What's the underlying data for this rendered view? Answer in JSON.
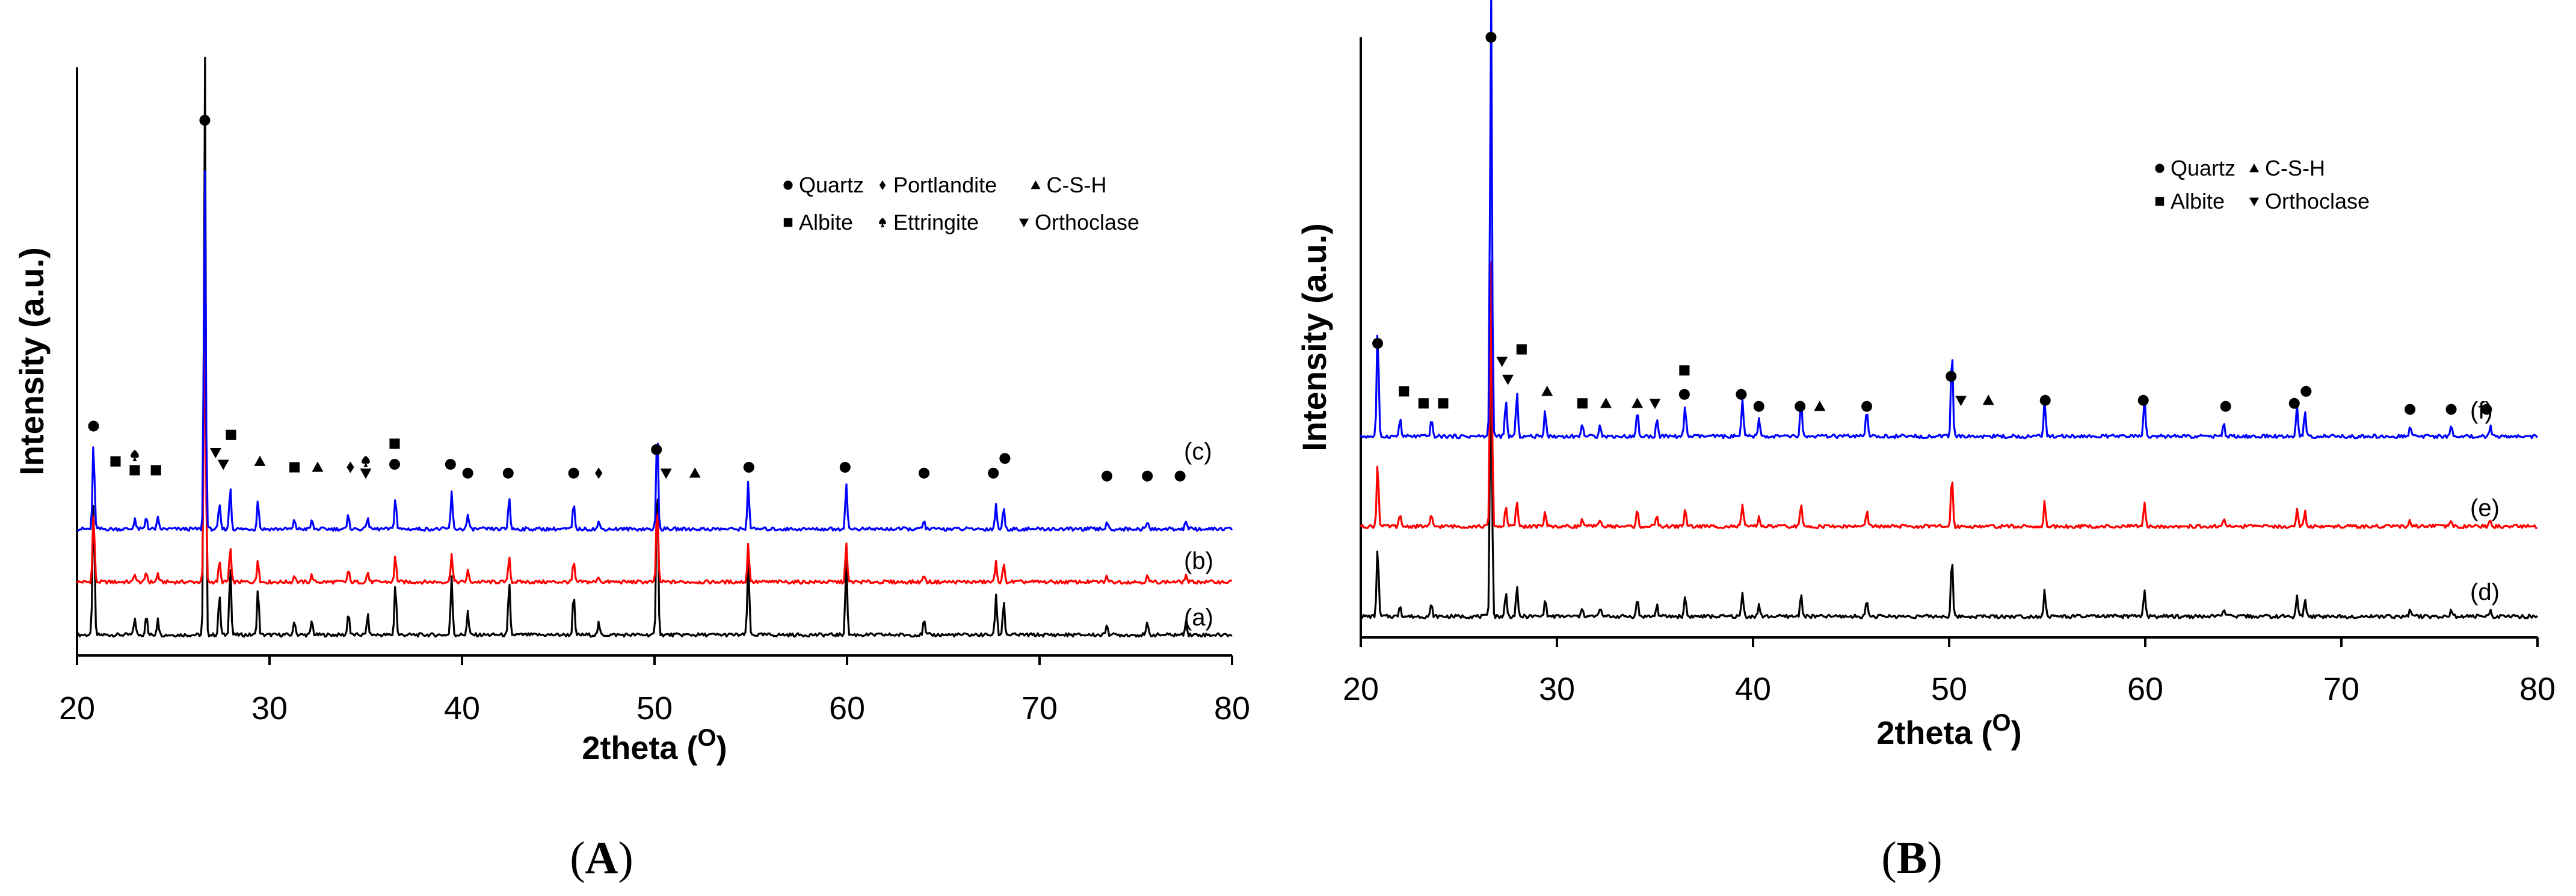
{
  "chart_data": [
    {
      "panel": "A",
      "panel_label": "A",
      "type": "line",
      "title": "",
      "xlabel": "2theta (O)",
      "xlabel_main": "2theta (",
      "xlabel_sup": "O",
      "xlabel_close": ")",
      "ylabel": "Intensity (a.u.)",
      "xlim": [
        20,
        80
      ],
      "xticks": [
        20,
        30,
        40,
        50,
        60,
        70,
        80
      ],
      "grid": false,
      "legend_position": "top-right",
      "legend_rows": [
        [
          {
            "marker": "circle",
            "label": "Quartz"
          },
          {
            "marker": "diamond",
            "label": "Portlandite"
          },
          {
            "marker": "triangle-up",
            "label": "C-S-H"
          }
        ],
        [
          {
            "marker": "square",
            "label": "Albite"
          },
          {
            "marker": "spade",
            "label": "Ettringite"
          },
          {
            "marker": "triangle-down",
            "label": "Orthoclase"
          }
        ]
      ],
      "peaks": [
        [
          20.86,
          0.24
        ],
        [
          23.0,
          0.03
        ],
        [
          23.6,
          0.035
        ],
        [
          24.2,
          0.03
        ],
        [
          26.64,
          1.0
        ],
        [
          27.4,
          0.07
        ],
        [
          27.96,
          0.12
        ],
        [
          29.4,
          0.08
        ],
        [
          31.3,
          0.025
        ],
        [
          32.2,
          0.025
        ],
        [
          34.1,
          0.04
        ],
        [
          35.1,
          0.035
        ],
        [
          36.54,
          0.09
        ],
        [
          39.46,
          0.1
        ],
        [
          40.3,
          0.04
        ],
        [
          42.45,
          0.09
        ],
        [
          45.8,
          0.07
        ],
        [
          47.1,
          0.02
        ],
        [
          50.14,
          0.28
        ],
        [
          54.87,
          0.13
        ],
        [
          59.96,
          0.13
        ],
        [
          64.0,
          0.025
        ],
        [
          67.74,
          0.07
        ],
        [
          68.14,
          0.06
        ],
        [
          73.5,
          0.02
        ],
        [
          75.6,
          0.02
        ],
        [
          77.6,
          0.025
        ]
      ],
      "series": [
        {
          "name": "(a)",
          "color": "#000000",
          "offset": 0.0,
          "scale": 1.0
        },
        {
          "name": "(b)",
          "color": "#ff0000",
          "offset": 0.09,
          "scale": 0.5
        },
        {
          "name": "(c)",
          "color": "#0000ff",
          "offset": 0.18,
          "scale": 0.62
        }
      ],
      "phase_markers": [
        {
          "x": 20.86,
          "y": 0.39,
          "marker": "circle"
        },
        {
          "x": 22.0,
          "y": 0.33,
          "marker": "square"
        },
        {
          "x": 23.0,
          "y": 0.34,
          "marker": "spade"
        },
        {
          "x": 23.0,
          "y": 0.315,
          "marker": "square"
        },
        {
          "x": 24.1,
          "y": 0.315,
          "marker": "square"
        },
        {
          "x": 26.64,
          "y": 0.91,
          "marker": "circle"
        },
        {
          "x": 27.2,
          "y": 0.345,
          "marker": "triangle-down"
        },
        {
          "x": 27.6,
          "y": 0.325,
          "marker": "triangle-down"
        },
        {
          "x": 28.0,
          "y": 0.375,
          "marker": "square"
        },
        {
          "x": 29.5,
          "y": 0.33,
          "marker": "triangle-up"
        },
        {
          "x": 31.3,
          "y": 0.32,
          "marker": "square"
        },
        {
          "x": 32.5,
          "y": 0.32,
          "marker": "triangle-up"
        },
        {
          "x": 34.2,
          "y": 0.32,
          "marker": "diamond"
        },
        {
          "x": 35.0,
          "y": 0.33,
          "marker": "spade"
        },
        {
          "x": 35.0,
          "y": 0.31,
          "marker": "triangle-down"
        },
        {
          "x": 36.5,
          "y": 0.36,
          "marker": "square"
        },
        {
          "x": 36.5,
          "y": 0.325,
          "marker": "circle"
        },
        {
          "x": 39.4,
          "y": 0.325,
          "marker": "circle"
        },
        {
          "x": 40.3,
          "y": 0.31,
          "marker": "circle"
        },
        {
          "x": 42.4,
          "y": 0.31,
          "marker": "circle"
        },
        {
          "x": 45.8,
          "y": 0.31,
          "marker": "circle"
        },
        {
          "x": 47.1,
          "y": 0.31,
          "marker": "diamond"
        },
        {
          "x": 50.1,
          "y": 0.35,
          "marker": "circle"
        },
        {
          "x": 50.6,
          "y": 0.31,
          "marker": "triangle-down"
        },
        {
          "x": 52.1,
          "y": 0.31,
          "marker": "triangle-up"
        },
        {
          "x": 54.9,
          "y": 0.32,
          "marker": "circle"
        },
        {
          "x": 59.9,
          "y": 0.32,
          "marker": "circle"
        },
        {
          "x": 64.0,
          "y": 0.31,
          "marker": "circle"
        },
        {
          "x": 67.6,
          "y": 0.31,
          "marker": "circle"
        },
        {
          "x": 68.2,
          "y": 0.335,
          "marker": "circle"
        },
        {
          "x": 73.5,
          "y": 0.305,
          "marker": "circle"
        },
        {
          "x": 75.6,
          "y": 0.305,
          "marker": "circle"
        },
        {
          "x": 77.3,
          "y": 0.305,
          "marker": "circle"
        }
      ]
    },
    {
      "panel": "B",
      "panel_label": "B",
      "type": "line",
      "title": "",
      "xlabel": "2theta (O)",
      "xlabel_main": "2theta (",
      "xlabel_sup": "O",
      "xlabel_close": ")",
      "ylabel": "Intensity (a.u.)",
      "xlim": [
        20,
        80
      ],
      "xticks": [
        20,
        30,
        40,
        50,
        60,
        70,
        80
      ],
      "grid": false,
      "legend_position": "top-right",
      "legend_rows": [
        [
          {
            "marker": "circle",
            "label": "Quartz"
          },
          {
            "marker": "triangle-up",
            "label": "C-S-H"
          }
        ],
        [
          {
            "marker": "square",
            "label": "Albite"
          },
          {
            "marker": "triangle-down",
            "label": "Orthoclase"
          }
        ]
      ],
      "peaks": [
        [
          20.86,
          0.12
        ],
        [
          22.0,
          0.02
        ],
        [
          23.6,
          0.02
        ],
        [
          26.64,
          0.5
        ],
        [
          27.4,
          0.04
        ],
        [
          27.96,
          0.05
        ],
        [
          29.4,
          0.03
        ],
        [
          31.3,
          0.015
        ],
        [
          32.2,
          0.015
        ],
        [
          34.1,
          0.03
        ],
        [
          35.1,
          0.02
        ],
        [
          36.54,
          0.035
        ],
        [
          39.46,
          0.04
        ],
        [
          40.3,
          0.02
        ],
        [
          42.45,
          0.04
        ],
        [
          45.8,
          0.03
        ],
        [
          50.14,
          0.1
        ],
        [
          54.87,
          0.045
        ],
        [
          59.96,
          0.045
        ],
        [
          64.0,
          0.015
        ],
        [
          67.74,
          0.035
        ],
        [
          68.14,
          0.03
        ],
        [
          73.5,
          0.012
        ],
        [
          75.6,
          0.012
        ],
        [
          77.6,
          0.012
        ]
      ],
      "series": [
        {
          "name": "(d)",
          "color": "#000000",
          "offset": 0.0,
          "scale": 1.0
        },
        {
          "name": "(e)",
          "color": "#ff0000",
          "offset": 0.15,
          "scale": 0.9
        },
        {
          "name": "(f)",
          "color": "#0000ff",
          "offset": 0.3,
          "scale": 1.5
        }
      ],
      "phase_markers": [
        {
          "x": 20.86,
          "y": 0.49,
          "marker": "circle"
        },
        {
          "x": 22.2,
          "y": 0.41,
          "marker": "square"
        },
        {
          "x": 23.2,
          "y": 0.39,
          "marker": "square"
        },
        {
          "x": 24.2,
          "y": 0.39,
          "marker": "square"
        },
        {
          "x": 26.64,
          "y": 1.0,
          "marker": "circle"
        },
        {
          "x": 27.2,
          "y": 0.46,
          "marker": "triangle-down"
        },
        {
          "x": 27.5,
          "y": 0.43,
          "marker": "triangle-down"
        },
        {
          "x": 28.2,
          "y": 0.48,
          "marker": "square"
        },
        {
          "x": 29.5,
          "y": 0.41,
          "marker": "triangle-up"
        },
        {
          "x": 31.3,
          "y": 0.39,
          "marker": "square"
        },
        {
          "x": 32.5,
          "y": 0.39,
          "marker": "triangle-up"
        },
        {
          "x": 34.1,
          "y": 0.39,
          "marker": "triangle-up"
        },
        {
          "x": 35.0,
          "y": 0.39,
          "marker": "triangle-down"
        },
        {
          "x": 36.5,
          "y": 0.445,
          "marker": "square"
        },
        {
          "x": 36.5,
          "y": 0.405,
          "marker": "circle"
        },
        {
          "x": 39.4,
          "y": 0.405,
          "marker": "circle"
        },
        {
          "x": 40.3,
          "y": 0.385,
          "marker": "circle"
        },
        {
          "x": 42.4,
          "y": 0.385,
          "marker": "circle"
        },
        {
          "x": 43.4,
          "y": 0.385,
          "marker": "triangle-up"
        },
        {
          "x": 45.8,
          "y": 0.385,
          "marker": "circle"
        },
        {
          "x": 50.1,
          "y": 0.435,
          "marker": "circle"
        },
        {
          "x": 50.6,
          "y": 0.395,
          "marker": "triangle-down"
        },
        {
          "x": 52.0,
          "y": 0.395,
          "marker": "triangle-up"
        },
        {
          "x": 54.9,
          "y": 0.395,
          "marker": "circle"
        },
        {
          "x": 59.9,
          "y": 0.395,
          "marker": "circle"
        },
        {
          "x": 64.1,
          "y": 0.385,
          "marker": "circle"
        },
        {
          "x": 67.6,
          "y": 0.39,
          "marker": "circle"
        },
        {
          "x": 68.2,
          "y": 0.41,
          "marker": "circle"
        },
        {
          "x": 73.5,
          "y": 0.38,
          "marker": "circle"
        },
        {
          "x": 75.6,
          "y": 0.38,
          "marker": "circle"
        },
        {
          "x": 77.4,
          "y": 0.38,
          "marker": "circle"
        }
      ]
    }
  ]
}
